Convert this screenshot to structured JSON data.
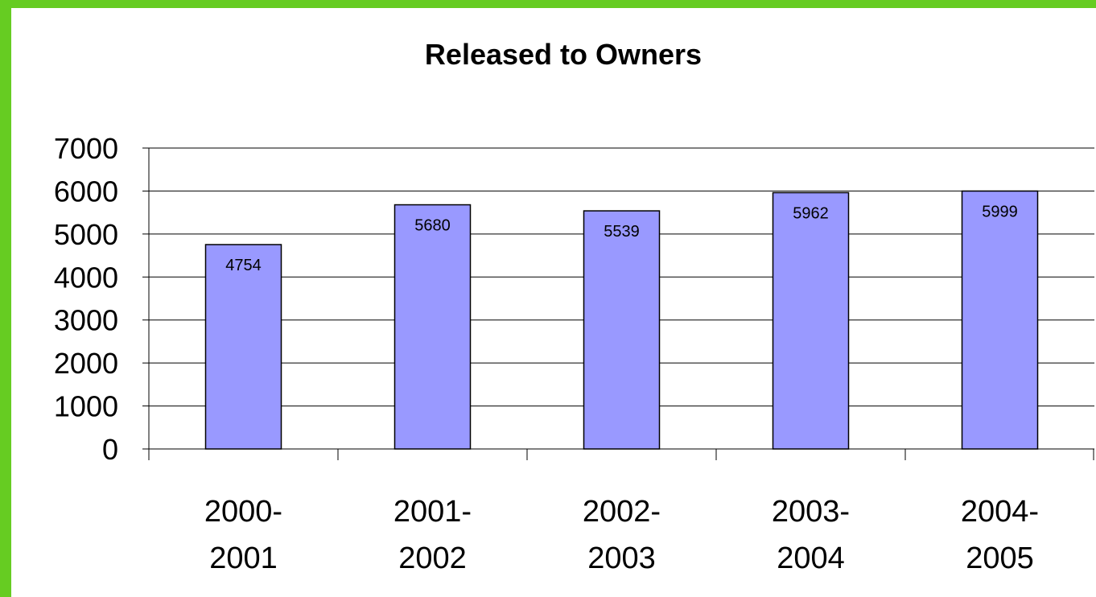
{
  "chart_data": {
    "type": "bar",
    "title": "Released to Owners",
    "xlabel": "",
    "ylabel": "",
    "categories": [
      [
        "2000-",
        "2001"
      ],
      [
        "2001-",
        "2002"
      ],
      [
        "2002-",
        "2003"
      ],
      [
        "2003-",
        "2004"
      ],
      [
        "2004-",
        "2005"
      ]
    ],
    "values": [
      4754,
      5680,
      5539,
      5962,
      5999
    ],
    "ylim": [
      0,
      7000
    ],
    "yticks": [
      0,
      1000,
      2000,
      3000,
      4000,
      5000,
      6000,
      7000
    ],
    "grid": true,
    "legend": "none",
    "colors": {
      "bar": "#9999ff",
      "frame": "#66cc22"
    }
  }
}
